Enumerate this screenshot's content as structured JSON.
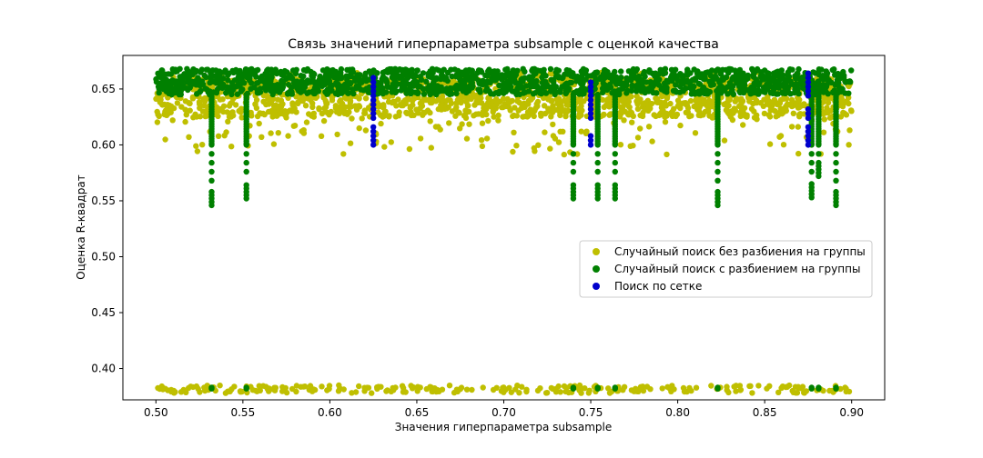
{
  "chart_data": {
    "type": "scatter",
    "title": "Связь значений гиперпараметра subsample с оценкой качества",
    "xlabel": "Значения гиперпараметра subsample",
    "ylabel": "Оценка R-квадрат",
    "xlim": [
      0.481,
      0.919
    ],
    "ylim": [
      0.372,
      0.68
    ],
    "x_ticks": [
      0.5,
      0.55,
      0.6,
      0.65,
      0.7,
      0.75,
      0.8,
      0.85,
      0.9
    ],
    "x_tick_labels": [
      "0.50",
      "0.55",
      "0.60",
      "0.65",
      "0.70",
      "0.75",
      "0.80",
      "0.85",
      "0.90"
    ],
    "y_ticks": [
      0.4,
      0.45,
      0.5,
      0.55,
      0.6,
      0.65
    ],
    "y_tick_labels": [
      "0.40",
      "0.45",
      "0.50",
      "0.55",
      "0.60",
      "0.65"
    ],
    "grid": false,
    "legend_position": "center-right",
    "series": [
      {
        "name": "Случайный поиск без разбиения на группы",
        "color": "#bfbf00",
        "x_range": [
          0.5,
          0.9
        ],
        "y_main_band": [
          0.625,
          0.66
        ],
        "y_scatter_band": [
          0.59,
          0.665
        ],
        "y_low_band": [
          0.378,
          0.385
        ]
      },
      {
        "name": "Случайный поиск с разбиением на группы",
        "color": "#008000",
        "x_range": [
          0.5,
          0.9
        ],
        "y_main_band": [
          0.645,
          0.668
        ],
        "y_low": 0.382,
        "columns": [
          {
            "x": 0.532,
            "y_min": 0.546
          },
          {
            "x": 0.552,
            "y_min": 0.552
          },
          {
            "x": 0.74,
            "y_min": 0.552
          },
          {
            "x": 0.754,
            "y_min": 0.552
          },
          {
            "x": 0.764,
            "y_min": 0.552
          },
          {
            "x": 0.823,
            "y_min": 0.546
          },
          {
            "x": 0.877,
            "y_min": 0.553
          },
          {
            "x": 0.881,
            "y_min": 0.572
          },
          {
            "x": 0.891,
            "y_min": 0.546
          }
        ]
      },
      {
        "name": "Поиск по сетке",
        "color": "#0000cc",
        "points": [
          {
            "x": 0.625,
            "y": 0.6
          },
          {
            "x": 0.625,
            "y": 0.604
          },
          {
            "x": 0.625,
            "y": 0.608
          },
          {
            "x": 0.625,
            "y": 0.612
          },
          {
            "x": 0.625,
            "y": 0.616
          },
          {
            "x": 0.625,
            "y": 0.624
          },
          {
            "x": 0.625,
            "y": 0.628
          },
          {
            "x": 0.625,
            "y": 0.632
          },
          {
            "x": 0.625,
            "y": 0.636
          },
          {
            "x": 0.625,
            "y": 0.64
          },
          {
            "x": 0.625,
            "y": 0.644
          },
          {
            "x": 0.625,
            "y": 0.648
          },
          {
            "x": 0.625,
            "y": 0.652
          },
          {
            "x": 0.625,
            "y": 0.656
          },
          {
            "x": 0.625,
            "y": 0.66
          },
          {
            "x": 0.75,
            "y": 0.6
          },
          {
            "x": 0.75,
            "y": 0.604
          },
          {
            "x": 0.75,
            "y": 0.608
          },
          {
            "x": 0.75,
            "y": 0.624
          },
          {
            "x": 0.75,
            "y": 0.628
          },
          {
            "x": 0.75,
            "y": 0.632
          },
          {
            "x": 0.75,
            "y": 0.636
          },
          {
            "x": 0.75,
            "y": 0.64
          },
          {
            "x": 0.75,
            "y": 0.644
          },
          {
            "x": 0.75,
            "y": 0.648
          },
          {
            "x": 0.75,
            "y": 0.652
          },
          {
            "x": 0.75,
            "y": 0.656
          },
          {
            "x": 0.875,
            "y": 0.6
          },
          {
            "x": 0.875,
            "y": 0.604
          },
          {
            "x": 0.875,
            "y": 0.608
          },
          {
            "x": 0.875,
            "y": 0.612
          },
          {
            "x": 0.875,
            "y": 0.616
          },
          {
            "x": 0.875,
            "y": 0.624
          },
          {
            "x": 0.875,
            "y": 0.628
          },
          {
            "x": 0.875,
            "y": 0.632
          },
          {
            "x": 0.875,
            "y": 0.644
          },
          {
            "x": 0.875,
            "y": 0.648
          },
          {
            "x": 0.875,
            "y": 0.652
          },
          {
            "x": 0.875,
            "y": 0.656
          },
          {
            "x": 0.875,
            "y": 0.66
          },
          {
            "x": 0.875,
            "y": 0.664
          }
        ]
      }
    ]
  }
}
